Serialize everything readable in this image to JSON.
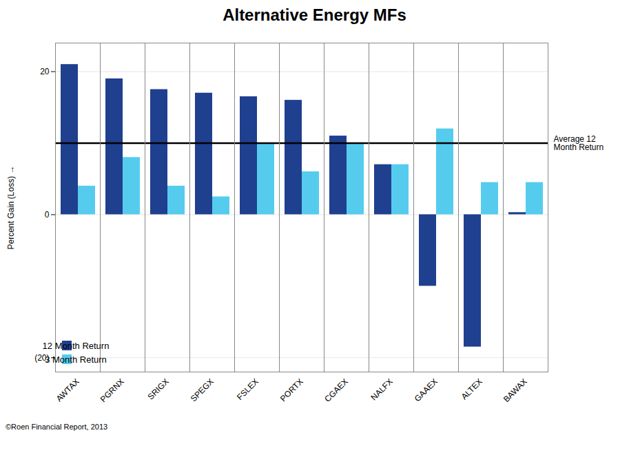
{
  "chart_data": {
    "type": "bar",
    "title": "Alternative Energy MFs",
    "categories": [
      "AWTAX",
      "PGRNX",
      "SRIGX",
      "SPEGX",
      "FSLEX",
      "PORTX",
      "CGAEX",
      "NALFX",
      "GAAEX",
      "ALTEX",
      "BAWAX"
    ],
    "series": [
      {
        "name": "12 Month Return",
        "color": "#1F3F8F",
        "values": [
          21.0,
          19.0,
          17.5,
          17.0,
          16.5,
          16.0,
          11.0,
          7.0,
          -10.0,
          -18.5,
          0.3
        ]
      },
      {
        "name": "3 Month Return",
        "color": "#55CCEE",
        "values": [
          4.0,
          8.0,
          4.0,
          2.5,
          10.0,
          6.0,
          10.0,
          7.0,
          12.0,
          4.5,
          4.5
        ]
      }
    ],
    "ylabel": "Percent Gain (Loss)",
    "ylim": [
      -22,
      24
    ],
    "yticks": [
      {
        "value": -20,
        "label": "(20)"
      },
      0,
      20
    ],
    "grid": true,
    "legend": "lower left",
    "reference_line": {
      "value": 10.0,
      "label": "Average 12\nMonth Return",
      "color": "#000000"
    },
    "footnote": "©Roen Financial Report, 2013"
  }
}
